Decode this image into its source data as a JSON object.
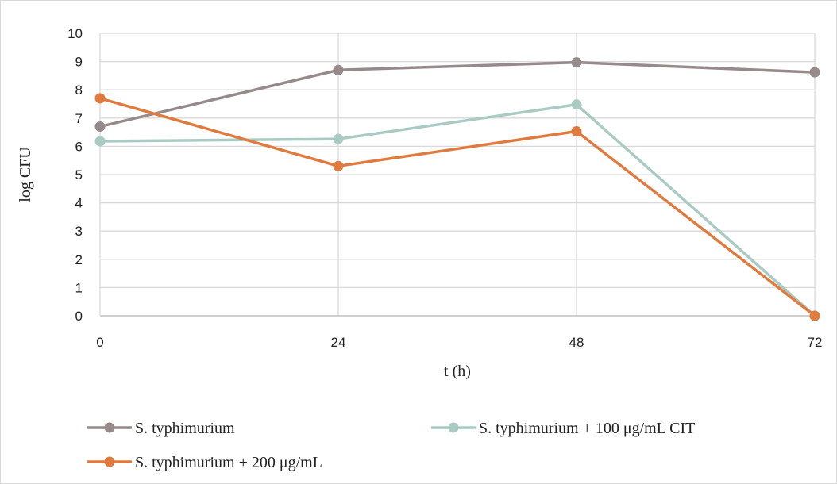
{
  "chart_data": {
    "type": "line",
    "title": "",
    "xlabel": "t (h)",
    "ylabel": "log CFU",
    "x": [
      0,
      24,
      48,
      72
    ],
    "x_tick_labels": [
      "0",
      "24",
      "48",
      "72"
    ],
    "ylim": [
      0,
      10
    ],
    "y_ticks": [
      0,
      1,
      2,
      3,
      4,
      5,
      6,
      7,
      8,
      9,
      10
    ],
    "grid": true,
    "legend_position": "bottom",
    "series": [
      {
        "name": "S. typhimurium",
        "color": "#968a8a",
        "values": [
          6.7,
          8.7,
          8.97,
          8.62
        ]
      },
      {
        "name": "S. typhimurium + 100 μg/mL CIT",
        "color": "#a9cbc4",
        "values": [
          6.18,
          6.26,
          7.48,
          0.0
        ]
      },
      {
        "name": "S. typhimurium + 200 μg/mL",
        "color": "#e07b3f",
        "values": [
          7.7,
          5.3,
          6.53,
          0.0
        ]
      }
    ]
  }
}
